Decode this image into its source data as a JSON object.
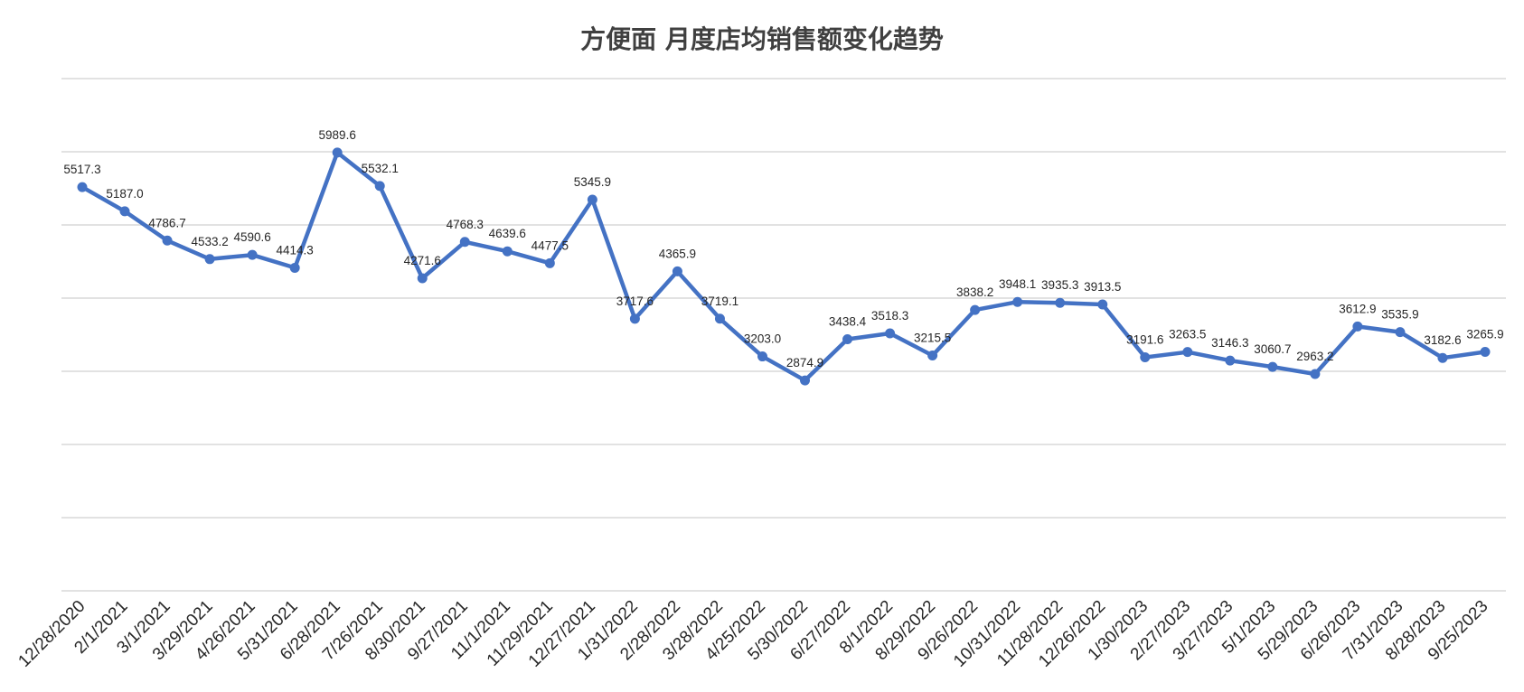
{
  "chart_data": {
    "type": "line",
    "title": "方便面 月度店均销售额变化趋势",
    "xlabel": "",
    "ylabel": "",
    "ylim": [
      0,
      7000
    ],
    "grid": true,
    "legend": "none",
    "show_y_tick_labels": false,
    "data_labels": true,
    "colors": {
      "series": "#4472c4",
      "grid": "#d9d9d9",
      "title": "#404040",
      "text": "#262626"
    },
    "categories": [
      "12/28/2020",
      "2/1/2021",
      "3/1/2021",
      "3/29/2021",
      "4/26/2021",
      "5/31/2021",
      "6/28/2021",
      "7/26/2021",
      "8/30/2021",
      "9/27/2021",
      "11/1/2021",
      "11/29/2021",
      "12/27/2021",
      "1/31/2022",
      "2/28/2022",
      "3/28/2022",
      "4/25/2022",
      "5/30/2022",
      "6/27/2022",
      "8/1/2022",
      "8/29/2022",
      "9/26/2022",
      "10/31/2022",
      "11/28/2022",
      "12/26/2022",
      "1/30/2023",
      "2/27/2023",
      "3/27/2023",
      "5/1/2023",
      "5/29/2023",
      "6/26/2023",
      "7/31/2023",
      "8/28/2023",
      "9/25/2023"
    ],
    "series": [
      {
        "values": [
          5517.3,
          5187.0,
          4786.7,
          4533.2,
          4590.6,
          4414.3,
          5989.6,
          5532.1,
          4271.6,
          4768.3,
          4639.6,
          4477.5,
          5345.9,
          3717.6,
          4365.9,
          3719.1,
          3203.0,
          2874.9,
          3438.4,
          3518.3,
          3215.5,
          3838.2,
          3948.1,
          3935.3,
          3913.5,
          3191.6,
          3263.5,
          3146.3,
          3060.7,
          2963.2,
          3612.9,
          3535.9,
          3182.6,
          3265.9
        ]
      }
    ]
  }
}
